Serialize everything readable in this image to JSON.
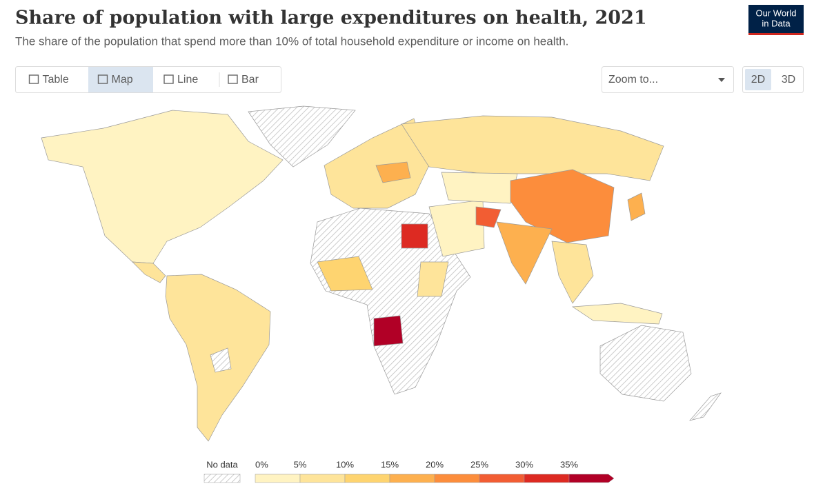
{
  "header": {
    "title": "Share of population with large expenditures on health, 2021",
    "subtitle": "The share of the population that spend more than 10% of total household expenditure or income on health.",
    "logo": [
      "Our World",
      "in Data"
    ]
  },
  "controls": {
    "tabs": [
      "Table",
      "Map",
      "Line",
      "Bar"
    ],
    "active_tab": 1,
    "zoom": "Zoom to...",
    "projections": [
      "2D",
      "3D"
    ],
    "active_projection": 0
  },
  "legend": {
    "no_data": "No data",
    "lim": [
      0,
      40
    ],
    "ticks": [
      {
        "value": 0,
        "label": "0%"
      },
      {
        "value": 5,
        "label": "5%"
      },
      {
        "value": 10,
        "label": "10%"
      },
      {
        "value": 15,
        "label": "15%"
      },
      {
        "value": 20,
        "label": "20%"
      },
      {
        "value": 25,
        "label": "25%"
      },
      {
        "value": 30,
        "label": "30%"
      },
      {
        "value": 35,
        "label": "35%"
      }
    ],
    "colors": [
      "#fff3c2",
      "#fee49a",
      "#fed470",
      "#fdb04f",
      "#fc8d3c",
      "#f25d33",
      "#dd2a22",
      "#b10026"
    ]
  }
}
